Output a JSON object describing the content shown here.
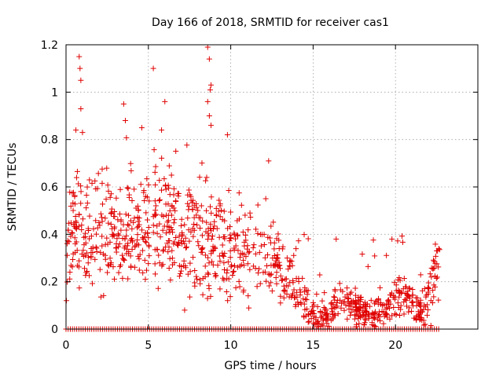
{
  "chart_data": {
    "type": "scatter",
    "title": "Day 166 of 2018, SRMTID for receiver cas1",
    "xlabel": "GPS time / hours",
    "ylabel": "SRMTID / TECUs",
    "xlim": [
      0,
      25
    ],
    "ylim": [
      0,
      1.2
    ],
    "xticks": [
      0,
      5,
      10,
      15,
      20
    ],
    "yticks": [
      0,
      0.2,
      0.4,
      0.6,
      0.8,
      1,
      1.2
    ],
    "ytick_labels": [
      "0",
      "0.2",
      "0.4",
      "0.6",
      "0.8",
      "1",
      "1.2"
    ],
    "grid": true,
    "marker": "+",
    "color": "#e00000",
    "trend": [
      [
        0.0,
        0.33
      ],
      [
        0.5,
        0.42
      ],
      [
        1.0,
        0.4
      ],
      [
        2.0,
        0.4
      ],
      [
        3.0,
        0.4
      ],
      [
        4.0,
        0.41
      ],
      [
        5.0,
        0.42
      ],
      [
        6.0,
        0.43
      ],
      [
        7.0,
        0.41
      ],
      [
        8.0,
        0.4
      ],
      [
        9.0,
        0.37
      ],
      [
        10.0,
        0.33
      ],
      [
        11.0,
        0.33
      ],
      [
        12.0,
        0.31
      ],
      [
        13.0,
        0.25
      ],
      [
        13.8,
        0.18
      ],
      [
        14.5,
        0.1
      ],
      [
        15.0,
        0.05
      ],
      [
        16.0,
        0.07
      ],
      [
        16.8,
        0.14
      ],
      [
        17.5,
        0.09
      ],
      [
        18.5,
        0.06
      ],
      [
        19.5,
        0.08
      ],
      [
        20.0,
        0.13
      ],
      [
        20.5,
        0.15
      ],
      [
        21.0,
        0.1
      ],
      [
        21.7,
        0.07
      ],
      [
        22.2,
        0.15
      ],
      [
        22.6,
        0.28
      ],
      [
        22.8,
        0.2
      ]
    ],
    "spread": [
      [
        0.0,
        0.12
      ],
      [
        3.0,
        0.12
      ],
      [
        9.0,
        0.11
      ],
      [
        12.0,
        0.09
      ],
      [
        13.5,
        0.07
      ],
      [
        15.0,
        0.03
      ],
      [
        17.0,
        0.04
      ],
      [
        19.0,
        0.03
      ],
      [
        20.3,
        0.05
      ],
      [
        21.5,
        0.03
      ],
      [
        22.6,
        0.09
      ],
      [
        22.8,
        0.05
      ]
    ],
    "outliers": [
      {
        "x": 0.8,
        "y": 1.15
      },
      {
        "x": 0.85,
        "y": 1.1
      },
      {
        "x": 0.9,
        "y": 1.05
      },
      {
        "x": 0.9,
        "y": 0.93
      },
      {
        "x": 0.6,
        "y": 0.84
      },
      {
        "x": 1.0,
        "y": 0.83
      },
      {
        "x": 3.5,
        "y": 0.95
      },
      {
        "x": 3.6,
        "y": 0.88
      },
      {
        "x": 5.3,
        "y": 1.1
      },
      {
        "x": 6.0,
        "y": 0.96
      },
      {
        "x": 4.6,
        "y": 0.85
      },
      {
        "x": 5.8,
        "y": 0.84
      },
      {
        "x": 8.6,
        "y": 1.19
      },
      {
        "x": 8.7,
        "y": 1.14
      },
      {
        "x": 8.8,
        "y": 1.03
      },
      {
        "x": 8.75,
        "y": 1.01
      },
      {
        "x": 8.6,
        "y": 0.96
      },
      {
        "x": 8.7,
        "y": 0.9
      },
      {
        "x": 8.8,
        "y": 0.86
      },
      {
        "x": 9.8,
        "y": 0.82
      },
      {
        "x": 12.3,
        "y": 0.71
      },
      {
        "x": 16.4,
        "y": 0.38
      },
      {
        "x": 7.2,
        "y": 0.08
      }
    ],
    "zero_ranges": [
      [
        0.0,
        22.7
      ]
    ]
  }
}
